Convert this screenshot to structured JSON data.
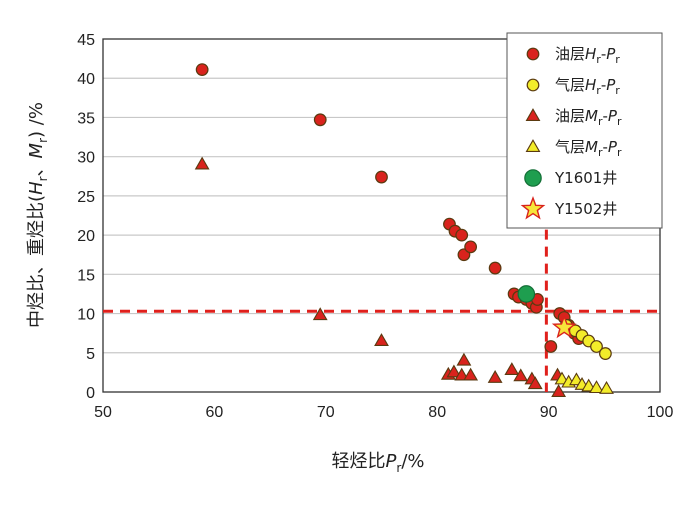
{
  "chart_data": {
    "type": "scatter",
    "xlabel": {
      "main": "轻烃比",
      "var": "P",
      "sub": "r",
      "unit": "/%"
    },
    "ylabel": {
      "p1": "中烃比、重烃比(",
      "v1": "H",
      "s1": "r",
      "sep": "、",
      "v2": "M",
      "s2": "r",
      "p2": ") /%"
    },
    "xlim": [
      50,
      100
    ],
    "ylim": [
      0,
      45
    ],
    "xticks": [
      "50",
      "60",
      "70",
      "80",
      "90",
      "100"
    ],
    "yticks": [
      "0",
      "5",
      "10",
      "15",
      "20",
      "25",
      "30",
      "35",
      "40",
      "45"
    ],
    "grid": "horizontal",
    "legend_position": "top-right",
    "reference_lines": {
      "x": 89.8,
      "y": 10.3,
      "color": "#e0201c"
    },
    "colors": {
      "red": "#d9231d",
      "yellow": "#f3ec2a",
      "green": "#1e9e4f",
      "star": "#f7e53a",
      "star_edge": "#d9231d"
    },
    "series": [
      {
        "name": "油层Hr-Pr",
        "legend": {
          "pre": "油层",
          "v1": "H",
          "s1": "r",
          "dash": "-",
          "v2": "P",
          "s2": "r"
        },
        "marker": "circle",
        "color": "#d9231d",
        "points": [
          [
            58.9,
            41.1
          ],
          [
            69.5,
            34.7
          ],
          [
            75,
            27.4
          ],
          [
            81.1,
            21.4
          ],
          [
            81.6,
            20.5
          ],
          [
            82.2,
            20
          ],
          [
            82.4,
            17.5
          ],
          [
            83,
            18.5
          ],
          [
            85.2,
            15.8
          ],
          [
            86.9,
            12.5
          ],
          [
            87.3,
            12.1
          ],
          [
            88,
            11.8
          ],
          [
            88.5,
            11.3
          ],
          [
            88.9,
            10.8
          ],
          [
            89,
            11.8
          ],
          [
            90.2,
            5.8
          ],
          [
            91,
            10
          ],
          [
            91.4,
            9.5
          ],
          [
            91.8,
            8.5
          ],
          [
            92.3,
            7.5
          ],
          [
            92.7,
            6.8
          ]
        ]
      },
      {
        "name": "气层Hr-Pr",
        "legend": {
          "pre": "气层",
          "v1": "H",
          "s1": "r",
          "dash": "-",
          "v2": "P",
          "s2": "r"
        },
        "marker": "circle",
        "color": "#f3ec2a",
        "points": [
          [
            91.6,
            8.5
          ],
          [
            92.4,
            7.8
          ],
          [
            93,
            7.2
          ],
          [
            93.6,
            6.5
          ],
          [
            94.3,
            5.8
          ],
          [
            95.1,
            4.9
          ]
        ]
      },
      {
        "name": "油层Mr-Pr",
        "legend": {
          "pre": "油层",
          "v1": "M",
          "s1": "r",
          "dash": "-",
          "v2": "P",
          "s2": "r"
        },
        "marker": "triangle",
        "color": "#d9231d",
        "points": [
          [
            58.9,
            29
          ],
          [
            69.5,
            9.8
          ],
          [
            75,
            6.5
          ],
          [
            81,
            2.2
          ],
          [
            81.5,
            2.5
          ],
          [
            82.2,
            2.1
          ],
          [
            82.4,
            4
          ],
          [
            83,
            2.1
          ],
          [
            85.2,
            1.8
          ],
          [
            86.7,
            2.8
          ],
          [
            87.5,
            2
          ],
          [
            88.5,
            1.6
          ],
          [
            88.8,
            1
          ],
          [
            90.8,
            2.1
          ],
          [
            90.9,
            0
          ]
        ]
      },
      {
        "name": "气层Mr-Pr",
        "legend": {
          "pre": "气层",
          "v1": "M",
          "s1": "r",
          "dash": "-",
          "v2": "P",
          "s2": "r"
        },
        "marker": "triangle",
        "color": "#f3ec2a",
        "points": [
          [
            91.2,
            1.6
          ],
          [
            91.8,
            1.2
          ],
          [
            92.5,
            1.5
          ],
          [
            93,
            0.9
          ],
          [
            93.6,
            0.7
          ],
          [
            94.3,
            0.5
          ],
          [
            95.2,
            0.4
          ]
        ]
      },
      {
        "name": "Y1601井",
        "legend": {
          "pre": "Y1601井"
        },
        "marker": "bigcircle",
        "color": "#1e9e4f",
        "points": [
          [
            88,
            12.5
          ]
        ]
      },
      {
        "name": "Y1502井",
        "legend": {
          "pre": "Y1502井"
        },
        "marker": "star",
        "color": "#f7e53a",
        "points": [
          [
            91.4,
            8.2
          ]
        ]
      }
    ]
  }
}
